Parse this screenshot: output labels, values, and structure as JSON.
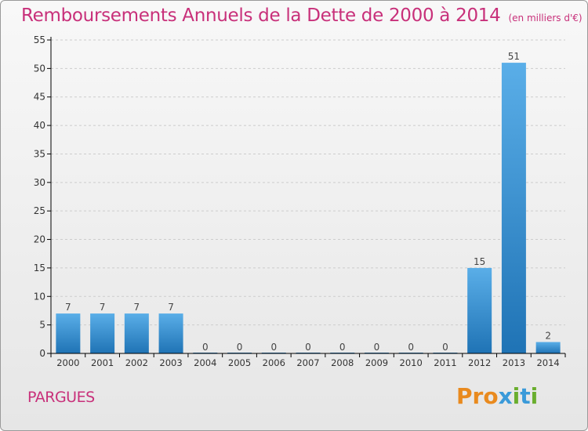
{
  "title": "Remboursements Annuels de la Dette de 2000 à 2014",
  "unit": "(en milliers d'€)",
  "commune": "PARGUES",
  "logo_text": "Proxiti",
  "colors": {
    "title": "#c8307a",
    "bar_top": "#5aaee8",
    "bar_bottom": "#1f73b5",
    "axis": "#000000",
    "grid": "#cccccc",
    "logo": [
      "#e98a1e",
      "#e98a1e",
      "#e98a1e",
      "#3a9ad9",
      "#6aae2e",
      "#3a9ad9",
      "#6aae2e"
    ]
  },
  "chart_data": {
    "type": "bar",
    "title": "Remboursements Annuels de la Dette de 2000 à 2014",
    "categories": [
      "2000",
      "2001",
      "2002",
      "2003",
      "2004",
      "2005",
      "2006",
      "2007",
      "2008",
      "2009",
      "2010",
      "2011",
      "2012",
      "2013",
      "2014"
    ],
    "values": [
      7,
      7,
      7,
      7,
      0,
      0,
      0,
      0,
      0,
      0,
      0,
      0,
      15,
      51,
      2
    ],
    "data_labels": [
      "7",
      "7",
      "7",
      "7",
      "0",
      "0",
      "0",
      "0",
      "0",
      "0",
      "0",
      "0",
      "15",
      "51",
      "2"
    ],
    "ylim": [
      0,
      55
    ],
    "yticks": [
      0,
      5,
      10,
      15,
      20,
      25,
      30,
      35,
      40,
      45,
      50,
      55
    ],
    "xlabel": "",
    "ylabel": "",
    "grid": "horizontal dashed",
    "legend": "none"
  }
}
